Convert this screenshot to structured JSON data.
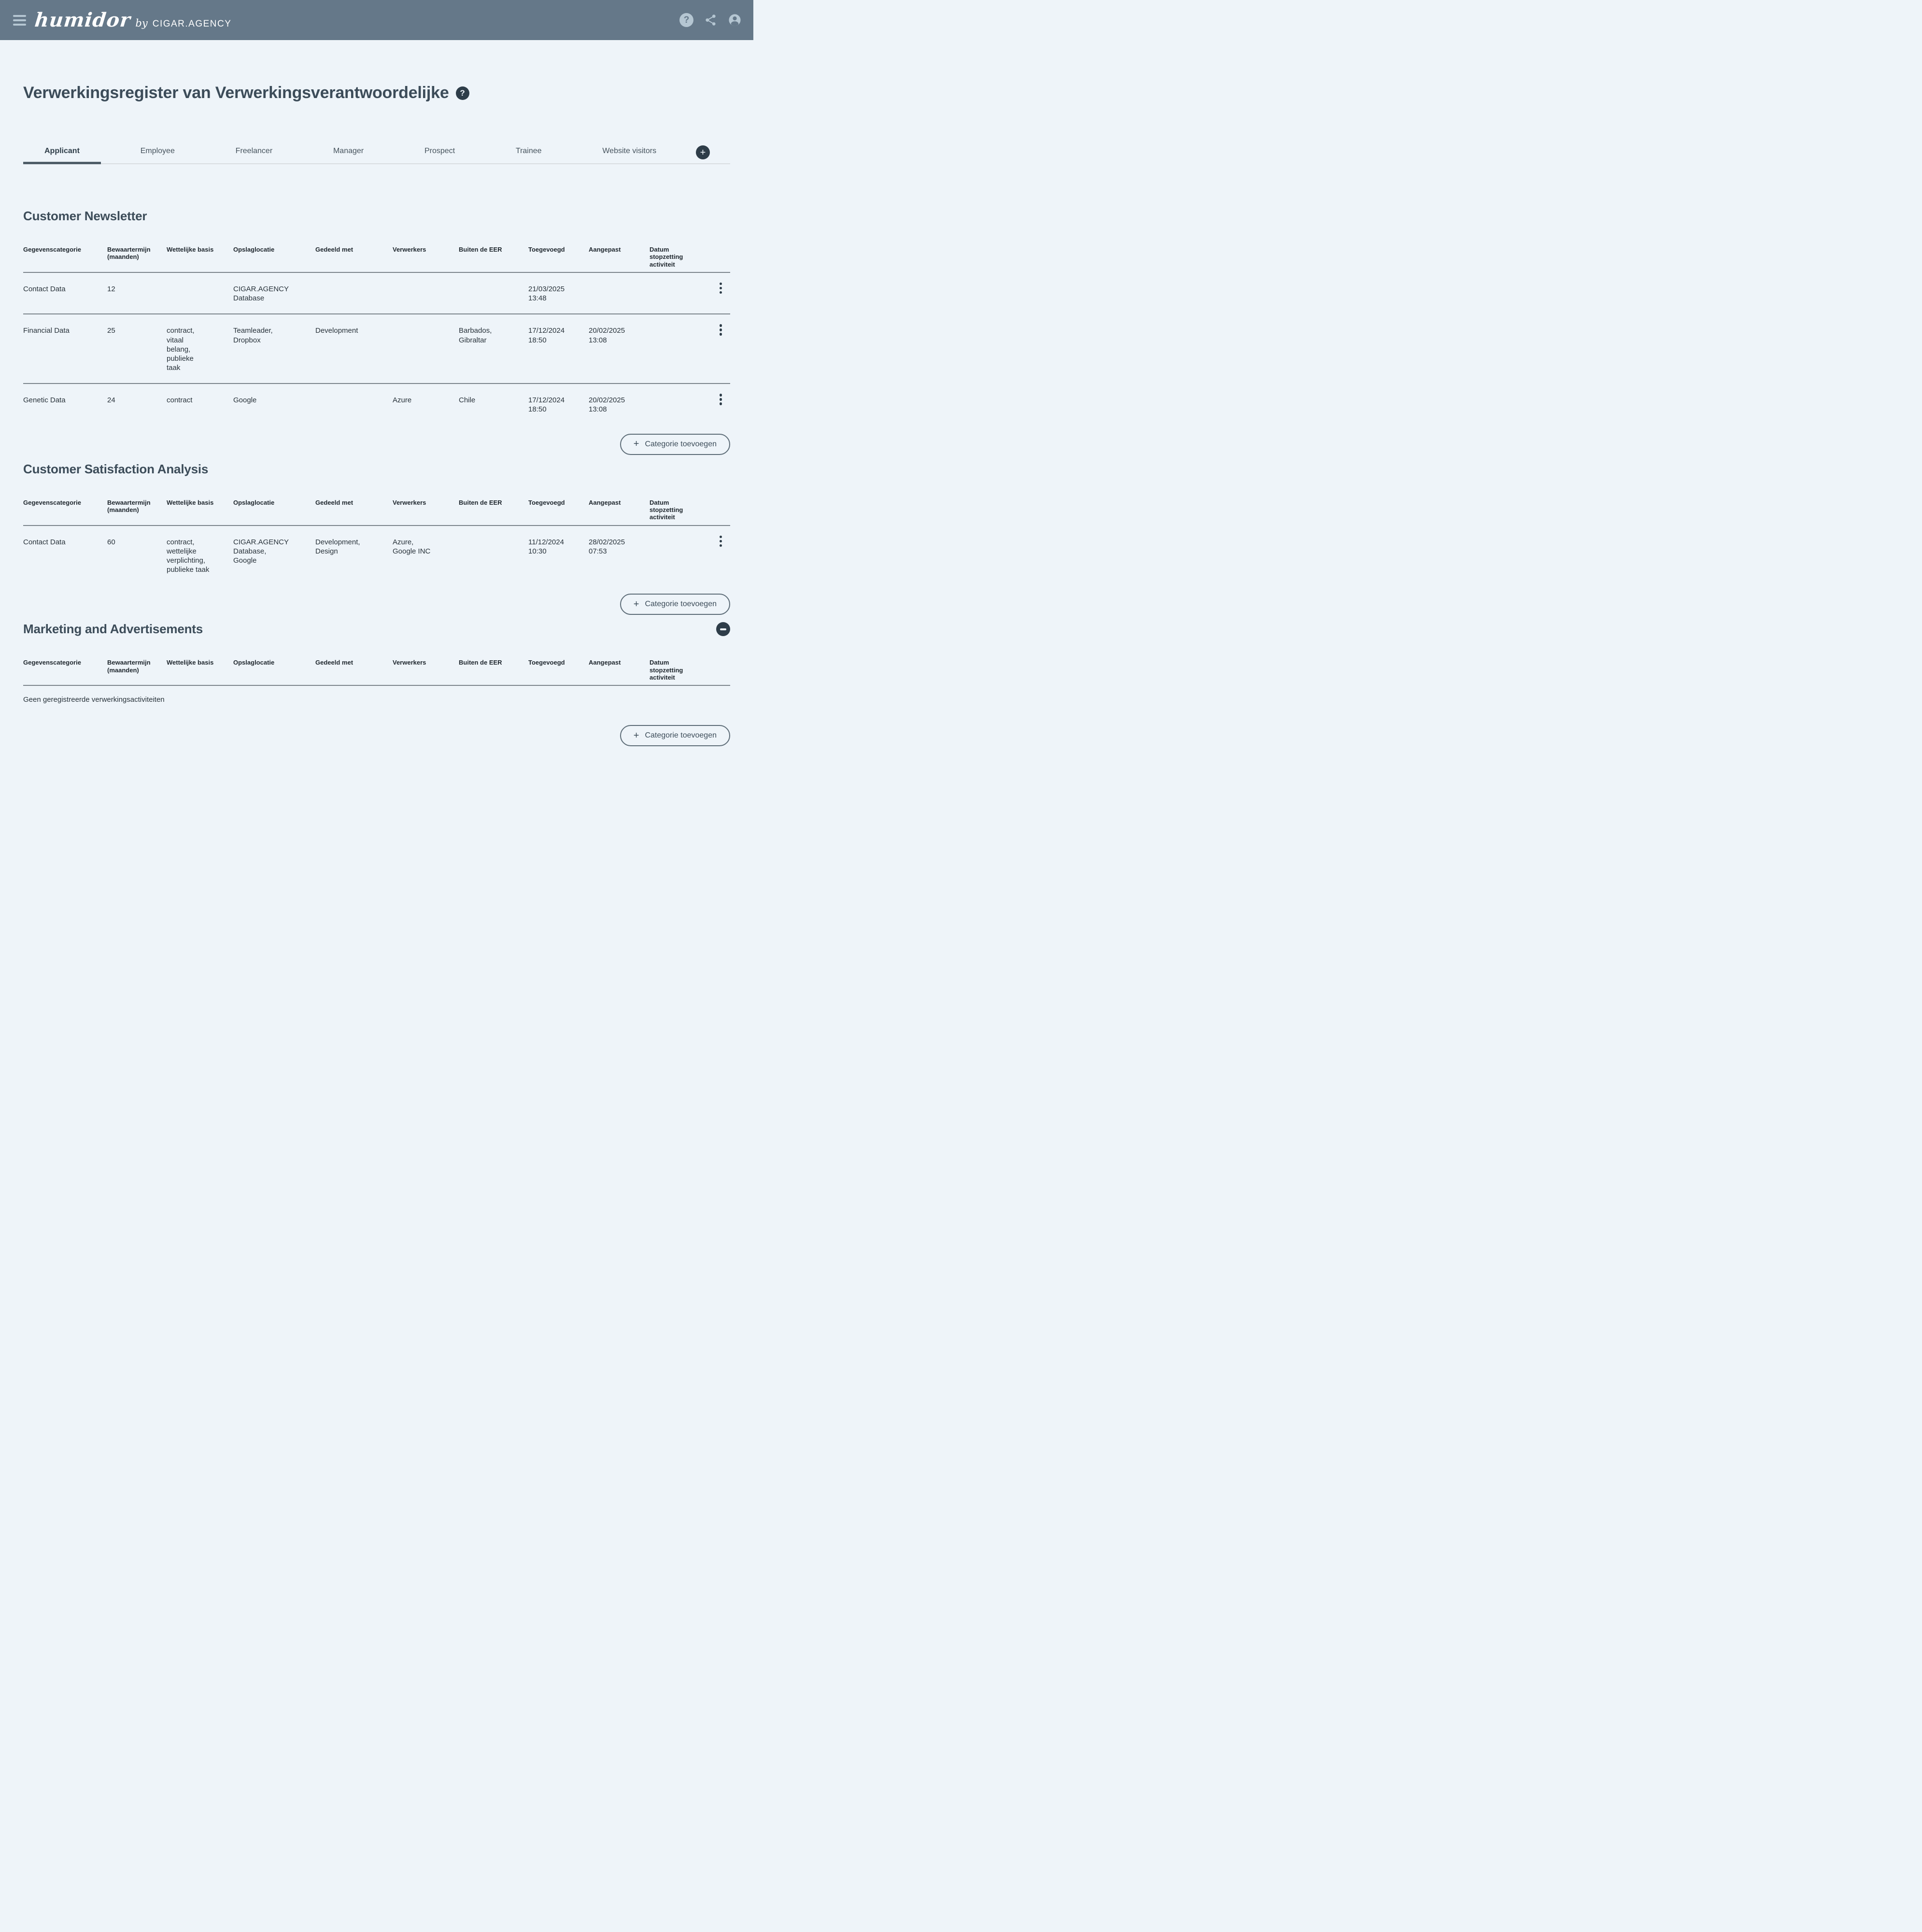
{
  "topbar": {
    "logo_script": "humidor",
    "logo_by": "by",
    "logo_brand": "CIGAR.AGENCY",
    "icons": [
      "menu-icon",
      "help-icon",
      "share-icon",
      "account-icon"
    ]
  },
  "page": {
    "title": "Verwerkingsregister van Verwerkingsverantwoordelijke",
    "title_icon": "help-icon"
  },
  "tabs": {
    "items": [
      {
        "label": "Applicant",
        "active": true
      },
      {
        "label": "Employee",
        "active": false
      },
      {
        "label": "Freelancer",
        "active": false
      },
      {
        "label": "Manager",
        "active": false
      },
      {
        "label": "Prospect",
        "active": false
      },
      {
        "label": "Trainee",
        "active": false
      },
      {
        "label": "Website visitors",
        "active": false
      }
    ],
    "add_tab_icon": "plus-icon"
  },
  "table": {
    "headers": [
      [
        "Gegevenscategorie"
      ],
      [
        "Bewaartermijn",
        "(maanden)"
      ],
      [
        "Wettelijke basis"
      ],
      [
        "Opslaglocatie"
      ],
      [
        "Gedeeld met"
      ],
      [
        "Verwerkers"
      ],
      [
        "Buiten de EER"
      ],
      [
        "Toegevoegd"
      ],
      [
        "Aangepast"
      ],
      [
        "Datum",
        "stopzetting",
        "activiteit"
      ]
    ]
  },
  "sections": [
    {
      "title": "Customer Newsletter",
      "collapsible": false,
      "add_label": "Categorie toevoegen",
      "rows": [
        [
          [
            "Contact Data"
          ],
          [
            "12"
          ],
          [],
          [
            "CIGAR.AGENCY",
            "Database"
          ],
          [],
          [],
          [],
          [
            "21/03/2025",
            "13:48"
          ],
          [],
          []
        ],
        [
          [
            "Financial Data"
          ],
          [
            "25"
          ],
          [
            "contract,",
            "vitaal",
            "belang,",
            "publieke",
            "taak"
          ],
          [
            "Teamleader,",
            "Dropbox"
          ],
          [
            "Development"
          ],
          [],
          [
            "Barbados,",
            "Gibraltar"
          ],
          [
            "17/12/2024",
            "18:50"
          ],
          [
            "20/02/2025",
            "13:08"
          ],
          []
        ],
        [
          [
            "Genetic Data"
          ],
          [
            "24"
          ],
          [
            "contract"
          ],
          [
            "Google"
          ],
          [],
          [
            "Azure"
          ],
          [
            "Chile"
          ],
          [
            "17/12/2024",
            "18:50"
          ],
          [
            "20/02/2025",
            "13:08"
          ],
          []
        ]
      ]
    },
    {
      "title": "Customer Satisfaction Analysis",
      "collapsible": false,
      "add_label": "Categorie toevoegen",
      "rows": [
        [
          [
            "Contact Data"
          ],
          [
            "60"
          ],
          [
            "contract,",
            "wettelijke",
            "verplichting,",
            "publieke taak"
          ],
          [
            "CIGAR.AGENCY",
            "Database,",
            "Google"
          ],
          [
            "Development,",
            "Design"
          ],
          [
            "Azure,",
            "Google INC"
          ],
          [],
          [
            "11/12/2024",
            "10:30"
          ],
          [
            "28/02/2025",
            "07:53"
          ],
          []
        ]
      ]
    },
    {
      "title": "Marketing and Advertisements",
      "collapsible": true,
      "collapse_icon": "minus-icon",
      "add_label": "Categorie toevoegen",
      "empty_text": "Geen geregistreerde verwerkingsactiviteiten",
      "rows": []
    }
  ],
  "colors": {
    "topbar": "#657889",
    "background": "#eef4f9",
    "accent_dark": "#2e3d49",
    "icon_light": "#b5c6d2",
    "heading": "#3c4c59",
    "divider": "#7d868d"
  }
}
